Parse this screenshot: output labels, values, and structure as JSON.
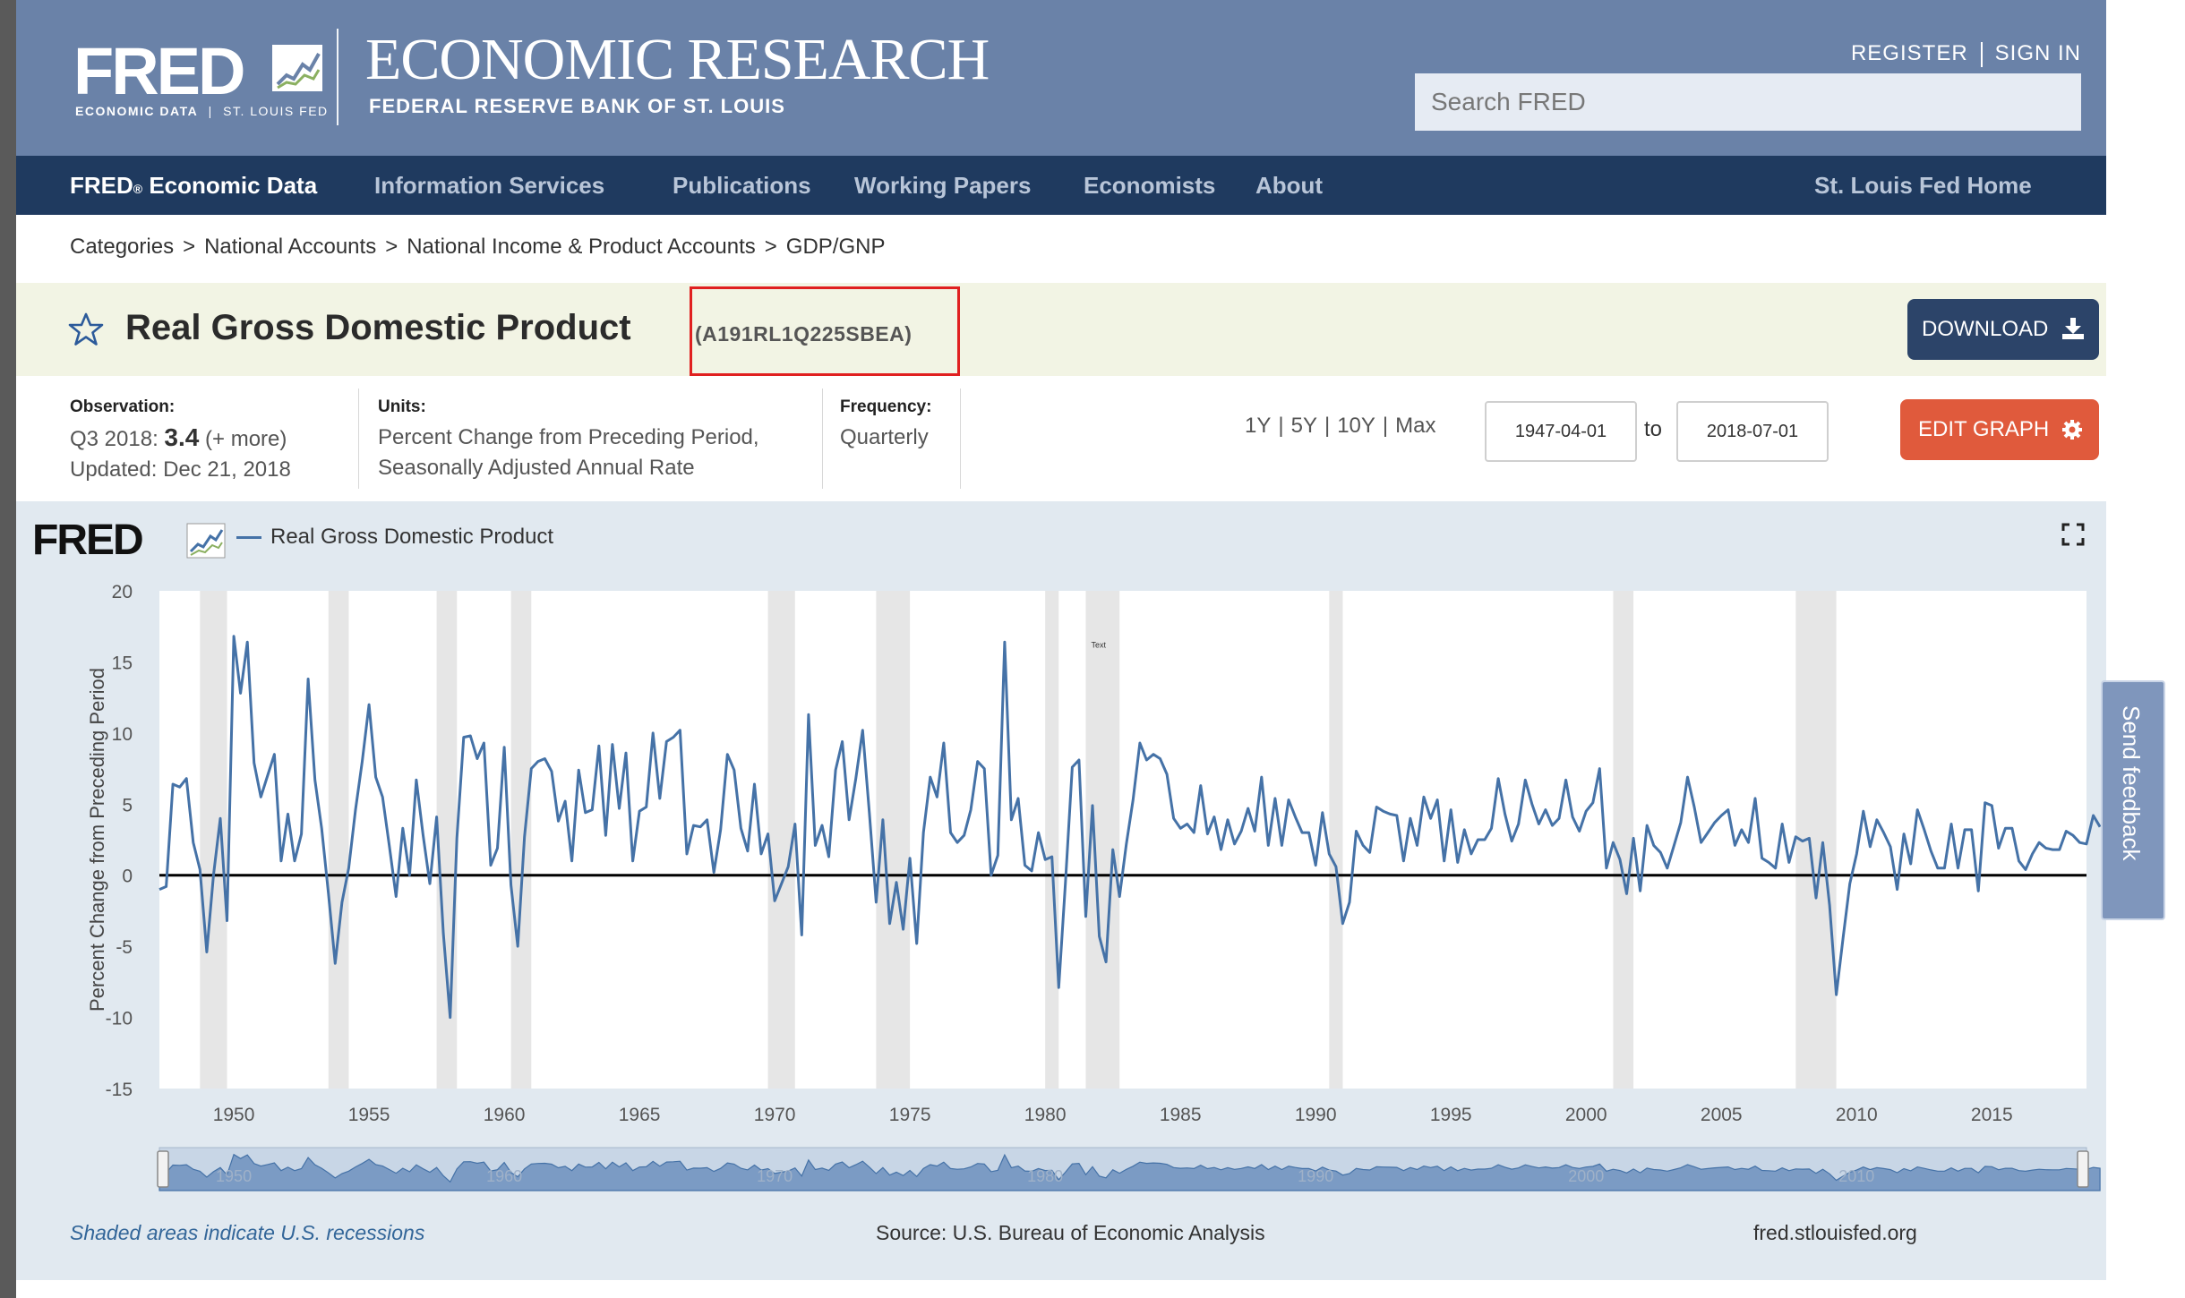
{
  "header": {
    "logo_word": "FRED",
    "logo_sub_left": "ECONOMIC DATA",
    "logo_sub_sep": "|",
    "logo_sub_right": "ST. LOUIS FED",
    "title": "ECONOMIC RESEARCH",
    "subtitle": "FEDERAL RESERVE BANK OF ST. LOUIS",
    "register": "REGISTER",
    "sign_in": "SIGN IN",
    "search_placeholder": "Search FRED"
  },
  "nav": {
    "fred": "FRED",
    "reg": "®",
    "fred_rest": " Economic Data",
    "items": [
      "Information Services",
      "Publications",
      "Working Papers",
      "Economists",
      "About"
    ],
    "home": "St. Louis Fed Home"
  },
  "breadcrumb": [
    "Categories",
    "National Accounts",
    "National Income & Product Accounts",
    "GDP/GNP"
  ],
  "breadcrumb_sep": ">",
  "series": {
    "title": "Real Gross Domestic Product",
    "id": "(A191RL1Q225SBEA)",
    "download_label": "DOWNLOAD"
  },
  "meta": {
    "observation_label": "Observation:",
    "observation_period": "Q3 2018:",
    "observation_value": "3.4",
    "observation_more": "(+ more)",
    "updated": "Updated: Dec 21, 2018",
    "units_label": "Units:",
    "units_line1": "Percent Change from Preceding Period,",
    "units_line2": "Seasonally Adjusted Annual Rate",
    "frequency_label": "Frequency:",
    "frequency_value": "Quarterly"
  },
  "range": {
    "links": [
      "1Y",
      "5Y",
      "10Y",
      "Max"
    ],
    "start": "1947-04-01",
    "to": "to",
    "end": "2018-07-01",
    "edit_label": "EDIT GRAPH"
  },
  "chart_data": {
    "type": "line",
    "legend": "Real Gross Domestic Product",
    "logo": "FRED",
    "ylabel": "Percent Change from Preceding Period",
    "ylim": [
      -15,
      20
    ],
    "yticks": [
      20,
      15,
      10,
      5,
      0,
      -5,
      -10,
      -15
    ],
    "xlim": [
      1947.25,
      2018.5
    ],
    "xticks": [
      1950,
      1955,
      1960,
      1965,
      1970,
      1975,
      1980,
      1985,
      1990,
      1995,
      2000,
      2005,
      2010,
      2015
    ],
    "navigator_labels": [
      "1950",
      "1960",
      "1970",
      "1980",
      "1990",
      "2000",
      "2010"
    ],
    "annotation": "Text",
    "recessions": [
      [
        1948.75,
        1949.75
      ],
      [
        1953.5,
        1954.25
      ],
      [
        1957.5,
        1958.25
      ],
      [
        1960.25,
        1961.0
      ],
      [
        1969.75,
        1970.75
      ],
      [
        1973.75,
        1975.0
      ],
      [
        1980.0,
        1980.5
      ],
      [
        1981.5,
        1982.75
      ],
      [
        1990.5,
        1991.0
      ],
      [
        2001.0,
        2001.75
      ],
      [
        2007.75,
        2009.25
      ]
    ],
    "series": [
      {
        "name": "Real Gross Domestic Product",
        "color": "#4572a7",
        "x_start": 1947.25,
        "step": 0.25,
        "values": [
          -1.0,
          -0.8,
          6.4,
          6.2,
          6.8,
          2.3,
          0.4,
          -5.4,
          0.0,
          4.0,
          -3.2,
          16.8,
          12.8,
          16.4,
          7.9,
          5.5,
          7.0,
          8.5,
          1.0,
          4.3,
          1.0,
          2.9,
          13.8,
          6.7,
          3.3,
          -1.3,
          -6.2,
          -1.9,
          0.5,
          4.6,
          8.0,
          12.0,
          6.9,
          5.5,
          2.1,
          -1.5,
          3.3,
          0.0,
          6.7,
          2.8,
          -0.6,
          4.1,
          -4.1,
          -10.0,
          2.6,
          9.7,
          9.8,
          8.2,
          9.3,
          0.7,
          1.9,
          9.0,
          -0.7,
          -5.0,
          2.7,
          7.5,
          8.0,
          8.2,
          7.3,
          3.8,
          5.2,
          1.0,
          7.4,
          4.4,
          4.6,
          9.1,
          2.8,
          9.2,
          4.7,
          8.6,
          1.0,
          4.5,
          4.8,
          10.0,
          5.4,
          9.4,
          9.7,
          10.2,
          1.5,
          3.5,
          3.4,
          3.9,
          0.2,
          3.2,
          8.5,
          7.4,
          3.3,
          1.7,
          6.4,
          1.5,
          2.9,
          -1.8,
          -0.6,
          0.6,
          3.6,
          -4.2,
          11.3,
          2.1,
          3.5,
          1.3,
          7.4,
          9.4,
          3.9,
          6.8,
          10.2,
          4.4,
          -1.9,
          3.9,
          -3.4,
          -0.5,
          -3.8,
          1.2,
          -4.8,
          3.0,
          6.9,
          5.5,
          9.3,
          3.0,
          2.3,
          2.8,
          4.6,
          8.0,
          7.5,
          0.0,
          1.4,
          16.4,
          3.9,
          5.4,
          0.7,
          0.3,
          3.0,
          1.1,
          1.3,
          -7.9,
          -0.5,
          7.6,
          8.1,
          -2.9,
          4.9,
          -4.3,
          -6.1,
          1.8,
          -1.5,
          2.2,
          5.3,
          9.3,
          8.1,
          8.5,
          8.2,
          7.1,
          4.0,
          3.3,
          3.6,
          3.0,
          6.3,
          2.9,
          4.1,
          1.8,
          3.9,
          2.2,
          3.1,
          4.7,
          3.1,
          6.9,
          2.1,
          5.4,
          2.1,
          5.3,
          4.1,
          3.0,
          3.0,
          0.7,
          4.4,
          1.5,
          0.6,
          -3.4,
          -1.9,
          3.1,
          2.1,
          1.6,
          4.8,
          4.5,
          4.3,
          4.2,
          1.0,
          4.0,
          2.1,
          5.5,
          4.0,
          5.3,
          1.0,
          4.6,
          0.9,
          3.2,
          1.5,
          2.5,
          2.5,
          3.3,
          6.8,
          4.3,
          2.4,
          3.6,
          6.7,
          5.0,
          3.6,
          4.6,
          3.5,
          4.0,
          6.7,
          4.1,
          3.1,
          4.5,
          5.1,
          7.5,
          0.5,
          2.3,
          1.1,
          -1.3,
          2.6,
          -1.1,
          3.5,
          2.1,
          1.6,
          0.5,
          2.1,
          3.7,
          6.9,
          4.8,
          2.3,
          3.0,
          3.7,
          4.2,
          4.6,
          2.1,
          3.2,
          2.3,
          5.4,
          1.2,
          0.9,
          0.5,
          3.6,
          0.9,
          2.7,
          2.4,
          2.6,
          -1.6,
          2.3,
          -2.1,
          -8.4,
          -4.4,
          -0.6,
          1.5,
          4.5,
          2.0,
          3.9,
          3.0,
          2.0,
          -1.0,
          2.9,
          0.8,
          4.6,
          3.2,
          1.7,
          0.5,
          0.5,
          3.6,
          0.5,
          3.2,
          3.2,
          -1.1,
          5.1,
          4.9,
          1.9,
          3.3,
          3.3,
          1.0,
          0.4,
          1.5,
          2.3,
          1.9,
          1.8,
          1.8,
          3.1,
          2.8,
          2.3,
          2.2,
          4.2,
          3.4
        ]
      }
    ],
    "source": "Source: U.S. Bureau of Economic Analysis",
    "shaded_note": "Shaded areas indicate U.S. recessions",
    "site": "fred.stlouisfed.org"
  },
  "feedback": "Send feedback"
}
